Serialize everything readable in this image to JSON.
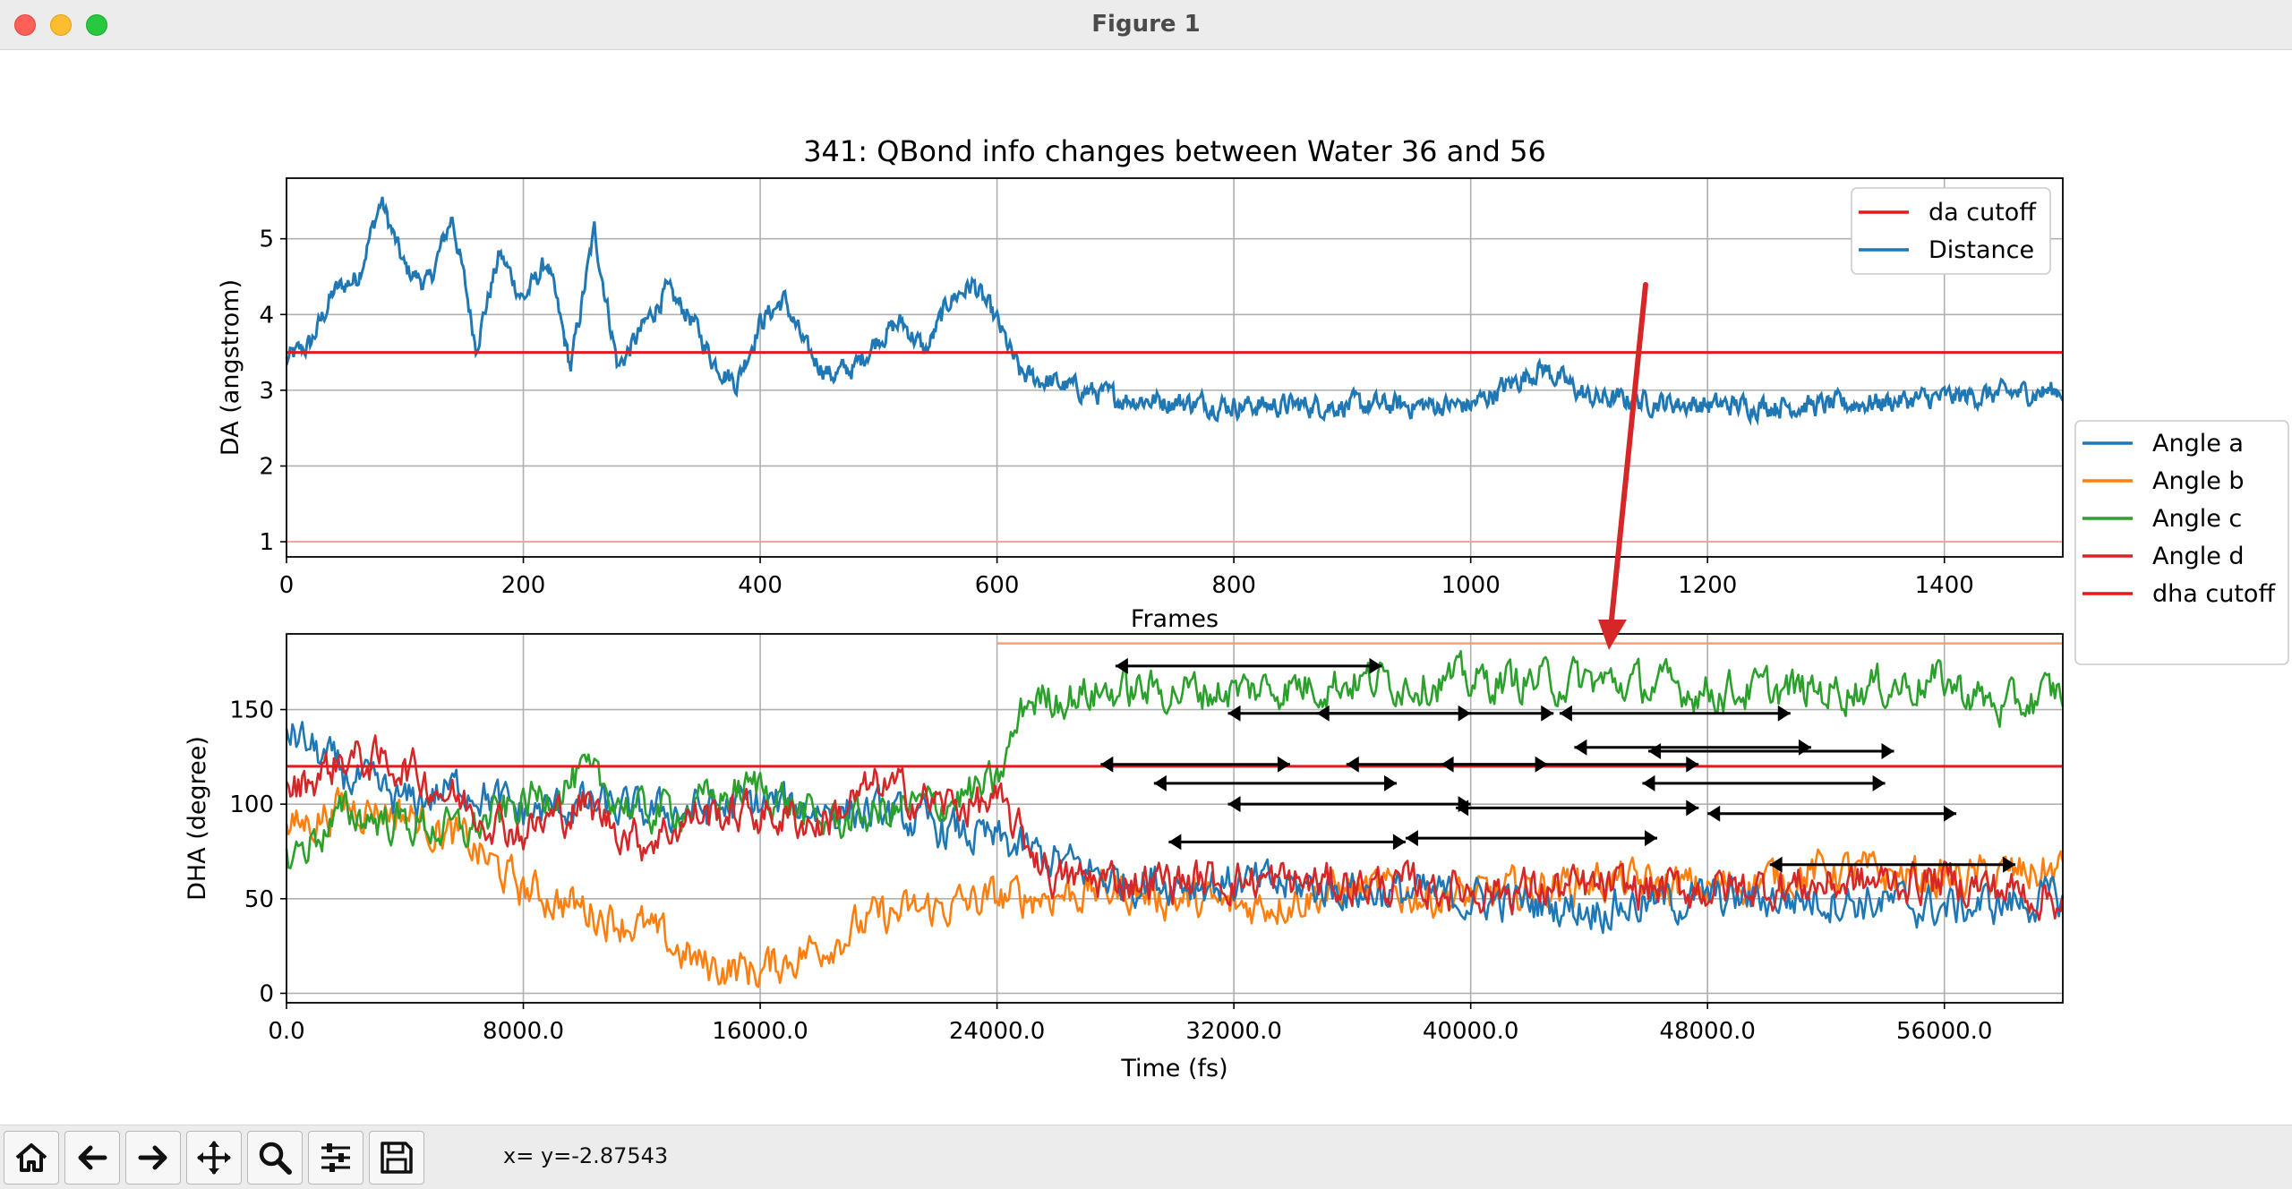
{
  "window": {
    "title": "Figure 1"
  },
  "toolbar": {
    "buttons": [
      {
        "name": "home-button",
        "icon": "home-icon"
      },
      {
        "name": "back-button",
        "icon": "arrow-left-icon"
      },
      {
        "name": "forward-button",
        "icon": "arrow-right-icon"
      },
      {
        "name": "pan-button",
        "icon": "move-icon"
      },
      {
        "name": "zoom-button",
        "icon": "magnifier-icon"
      },
      {
        "name": "configure-subplots-button",
        "icon": "sliders-icon"
      },
      {
        "name": "save-button",
        "icon": "floppy-disk-icon"
      }
    ],
    "coordinates": "x= y=-2.87543"
  },
  "colors": {
    "angle_a": "#1f77b4",
    "angle_b": "#ff7f0e",
    "angle_c": "#2ca02c",
    "angle_d": "#d62728",
    "cutoff": "#e41a1c",
    "annotation_arrow": "#d62728",
    "interval": "#000000"
  },
  "chart_data": [
    {
      "type": "line",
      "title": "341: QBond info changes between Water 36 and 56",
      "xlabel": "Frames",
      "ylabel": "DA (angstrom)",
      "xlim": [
        0,
        1500
      ],
      "ylim": [
        0.8,
        5.8
      ],
      "xticks": [
        "0",
        "200",
        "400",
        "600",
        "800",
        "1000",
        "1200",
        "1400"
      ],
      "yticks": [
        "1",
        "2",
        "3",
        "4",
        "5"
      ],
      "grid": true,
      "legend_position": "top-right",
      "series": [
        {
          "name": "da cutoff",
          "x": [
            0,
            1500
          ],
          "values": [
            3.5,
            3.5
          ]
        },
        {
          "name": "Distance",
          "x": [
            0,
            20,
            40,
            60,
            80,
            100,
            120,
            140,
            160,
            180,
            200,
            220,
            240,
            260,
            280,
            300,
            320,
            340,
            360,
            380,
            400,
            420,
            440,
            460,
            480,
            500,
            520,
            540,
            560,
            580,
            600,
            620,
            700,
            800,
            900,
            1000,
            1060,
            1100,
            1200,
            1300,
            1400,
            1500
          ],
          "values": [
            3.4,
            3.6,
            4.3,
            4.5,
            5.5,
            4.6,
            4.4,
            5.3,
            3.6,
            4.8,
            4.2,
            4.7,
            3.3,
            5.1,
            3.3,
            3.8,
            4.3,
            4.0,
            3.4,
            3.1,
            3.9,
            4.2,
            3.5,
            3.2,
            3.3,
            3.7,
            3.9,
            3.5,
            4.2,
            4.4,
            3.9,
            3.2,
            2.9,
            2.8,
            2.8,
            2.8,
            3.3,
            2.9,
            2.8,
            2.8,
            2.9,
            3.0
          ]
        }
      ]
    },
    {
      "type": "line",
      "xlabel": "Time (fs)",
      "ylabel": "DHA (degree)",
      "xlim": [
        0,
        60000
      ],
      "ylim": [
        -5,
        190
      ],
      "xticks": [
        "0.0",
        "8000.0",
        "16000.0",
        "24000.0",
        "32000.0",
        "40000.0",
        "48000.0",
        "56000.0"
      ],
      "yticks": [
        "0",
        "50",
        "100",
        "150"
      ],
      "grid": true,
      "legend_position": "outside-right",
      "legend": [
        "Angle a",
        "Angle b",
        "Angle c",
        "Angle d",
        "dha cutoff"
      ],
      "series": [
        {
          "name": "Angle a",
          "x": [
            0,
            2000,
            4000,
            6000,
            8000,
            10000,
            12000,
            16000,
            20000,
            24000,
            28000,
            32000,
            36000,
            40000,
            44000,
            48000,
            52000,
            56000,
            60000
          ],
          "values": [
            140,
            115,
            100,
            110,
            95,
            100,
            95,
            100,
            95,
            80,
            60,
            58,
            55,
            50,
            45,
            50,
            50,
            45,
            50
          ]
        },
        {
          "name": "Angle b",
          "x": [
            0,
            2000,
            4000,
            6000,
            8000,
            10000,
            12000,
            14000,
            16000,
            18000,
            20000,
            22000,
            24000,
            28000,
            32000,
            36000,
            40000,
            44000,
            48000,
            52000,
            56000,
            60000
          ],
          "values": [
            85,
            100,
            95,
            80,
            55,
            45,
            35,
            15,
            12,
            25,
            40,
            45,
            50,
            55,
            45,
            55,
            50,
            60,
            55,
            65,
            60,
            65
          ]
        },
        {
          "name": "Angle c",
          "x": [
            0,
            2000,
            4000,
            6000,
            8000,
            10000,
            12000,
            14000,
            16000,
            18000,
            20000,
            22000,
            24000,
            25000,
            28000,
            32000,
            36000,
            40000,
            44000,
            48000,
            52000,
            56000,
            58000,
            60000
          ],
          "values": [
            70,
            95,
            90,
            85,
            100,
            115,
            95,
            100,
            110,
            90,
            95,
            100,
            110,
            155,
            160,
            160,
            165,
            165,
            165,
            160,
            160,
            165,
            150,
            160
          ]
        },
        {
          "name": "Angle d",
          "x": [
            0,
            2000,
            4000,
            6000,
            8000,
            10000,
            12000,
            14000,
            16000,
            18000,
            20000,
            22000,
            24000,
            26000,
            32000,
            40000,
            48000,
            56000,
            60000
          ],
          "values": [
            105,
            125,
            120,
            100,
            85,
            100,
            80,
            95,
            95,
            90,
            110,
            100,
            100,
            60,
            60,
            55,
            55,
            60,
            50
          ]
        },
        {
          "name": "dha cutoff",
          "x": [
            0,
            60000
          ],
          "values": [
            120,
            120
          ]
        }
      ],
      "intervals": [
        {
          "y": 173,
          "x_start": 28000,
          "x_end": 37000
        },
        {
          "y": 148,
          "x_start": 31800,
          "x_end": 40000
        },
        {
          "y": 148,
          "x_start": 34800,
          "x_end": 42800
        },
        {
          "y": 148,
          "x_start": 43000,
          "x_end": 50800
        },
        {
          "y": 130,
          "x_start": 43500,
          "x_end": 51500
        },
        {
          "y": 128,
          "x_start": 46000,
          "x_end": 54300
        },
        {
          "y": 121,
          "x_start": 27500,
          "x_end": 33900
        },
        {
          "y": 121,
          "x_start": 35800,
          "x_end": 42600
        },
        {
          "y": 121,
          "x_start": 39000,
          "x_end": 47700
        },
        {
          "y": 111,
          "x_start": 29300,
          "x_end": 37500
        },
        {
          "y": 111,
          "x_start": 45800,
          "x_end": 54000
        },
        {
          "y": 100,
          "x_start": 31800,
          "x_end": 40000
        },
        {
          "y": 98,
          "x_start": 39500,
          "x_end": 47700
        },
        {
          "y": 95,
          "x_start": 48000,
          "x_end": 56400
        },
        {
          "y": 80,
          "x_start": 29800,
          "x_end": 37800
        },
        {
          "y": 82,
          "x_start": 37800,
          "x_end": 46300
        },
        {
          "y": 68,
          "x_start": 50100,
          "x_end": 58400
        }
      ]
    }
  ]
}
